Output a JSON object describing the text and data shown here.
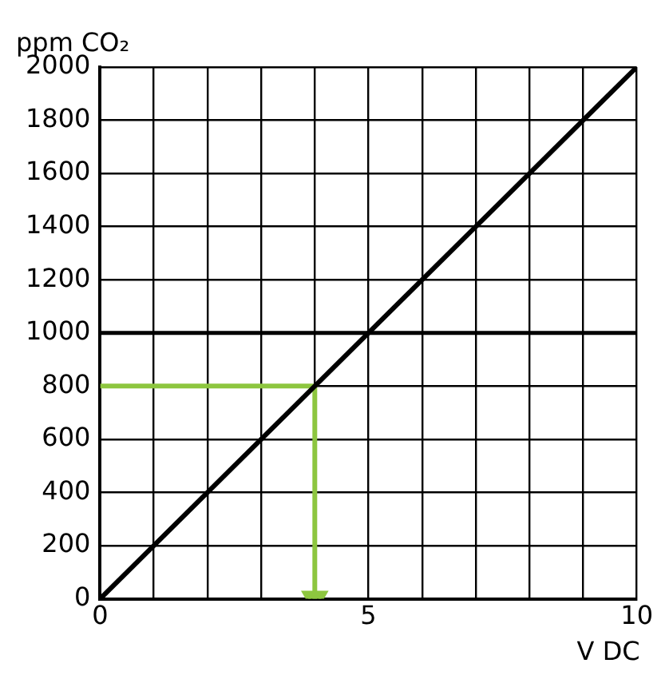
{
  "chart_data": {
    "type": "line",
    "xlabel": "V DC",
    "ylabel": "ppm CO₂",
    "xlim": [
      0,
      10
    ],
    "ylim": [
      0,
      2000
    ],
    "xticks": [
      0,
      {
        "value": 1,
        "label": null
      },
      {
        "value": 2,
        "label": null
      },
      {
        "value": 3,
        "label": null
      },
      {
        "value": 4,
        "label": null
      },
      5,
      {
        "value": 6,
        "label": null
      },
      {
        "value": 7,
        "label": null
      },
      {
        "value": 8,
        "label": null
      },
      {
        "value": 9,
        "label": null
      },
      10
    ],
    "yticks": [
      0,
      200,
      400,
      600,
      800,
      1000,
      1200,
      1400,
      1600,
      1800,
      2000
    ],
    "grid": true,
    "legend": false,
    "marker": "none",
    "line_style": "solid",
    "series": [
      {
        "color": "#000000",
        "x": [
          0,
          10
        ],
        "values": [
          0,
          2000
        ]
      },
      {
        "color": "#8dc63f",
        "x": [
          0,
          4,
          4
        ],
        "values": [
          800,
          800,
          0
        ]
      }
    ],
    "ref_lines": [
      {
        "axis": "y",
        "value": 1000,
        "color": "#000000"
      }
    ]
  }
}
